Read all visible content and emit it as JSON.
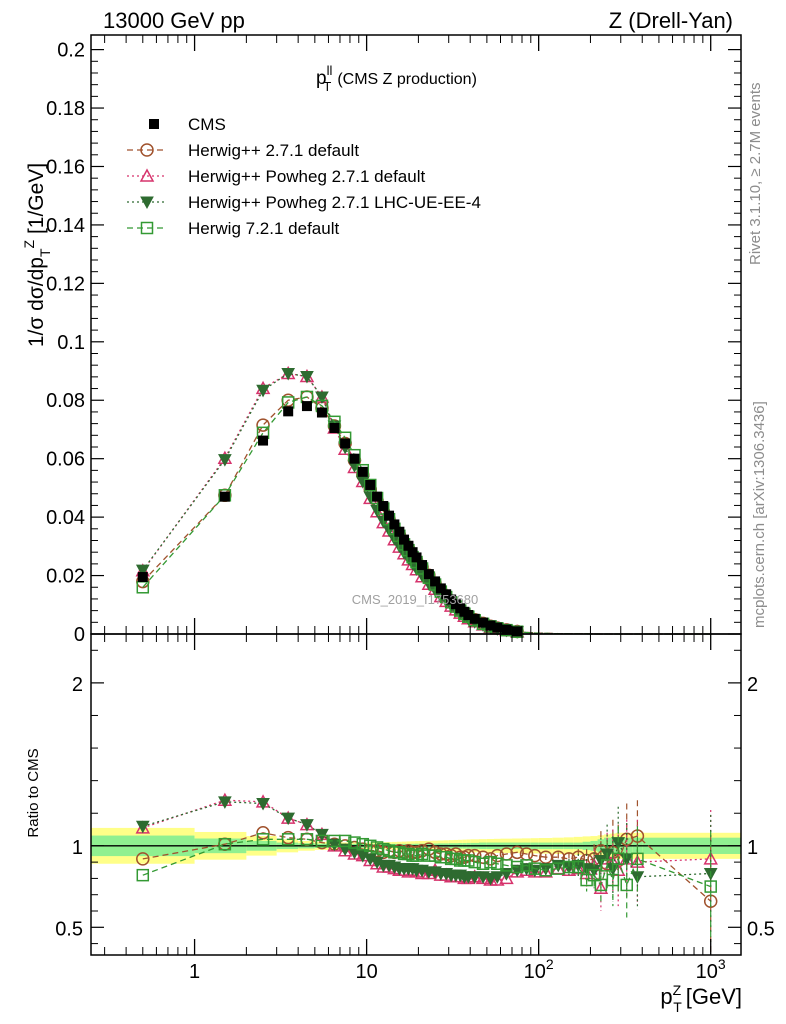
{
  "header": {
    "left": "13000 GeV pp",
    "right": "Z (Drell-Yan)"
  },
  "side": {
    "rivet": "Rivet 3.1.10, ≥ 2.7M events",
    "mcplots": "mcplots.cern.ch [arXiv:1306.3436]"
  },
  "watermark": "CMS_2019_I1753680",
  "chart_data": [
    {
      "type": "scatter",
      "panel": "main",
      "title_main": "p",
      "title_sup": "ll",
      "title_sub": "T",
      "title_rest": "(CMS Z production)",
      "ylabel": "1/σ dσ/dp_T^Z [1/GeV]",
      "xscale": "log",
      "xlim": [
        0.25,
        1500
      ],
      "ylim": [
        0,
        0.205
      ],
      "yticks": [
        0,
        0.02,
        0.04,
        0.06,
        0.08,
        0.1,
        0.12,
        0.14,
        0.16,
        0.18,
        0.2
      ],
      "ytick_labels": [
        "0",
        "0.02",
        "0.04",
        "0.06",
        "0.08",
        "0.1",
        "0.12",
        "0.14",
        "0.16",
        "0.18",
        "0.2"
      ],
      "legend_position": "top-left",
      "x": [
        0.5,
        1.5,
        2.5,
        3.5,
        4.5,
        5.5,
        6.5,
        7.5,
        8.5,
        9.5,
        10.5,
        11.5,
        12.5,
        13.5,
        14.5,
        15.5,
        16.5,
        17.5,
        18.5,
        19.5,
        21,
        23,
        25,
        27,
        29,
        31,
        33,
        35,
        37,
        39,
        42.5,
        47.5,
        52.5,
        57.5,
        65,
        75,
        85,
        95,
        110,
        130,
        150,
        170,
        190,
        210,
        230,
        250,
        270,
        290,
        325,
        375,
        1000
      ],
      "series": [
        {
          "name": "CMS",
          "style": "data",
          "color": "#000000",
          "values": [
            0.0195,
            0.047,
            0.0662,
            0.0762,
            0.078,
            0.0758,
            0.0705,
            0.0652,
            0.06,
            0.0555,
            0.051,
            0.047,
            0.0438,
            0.0405,
            0.0375,
            0.035,
            0.0323,
            0.0302,
            0.028,
            0.0262,
            0.0236,
            0.0205,
            0.018,
            0.0156,
            0.0136,
            0.0118,
            0.0102,
            0.0088,
            0.0076,
            0.0065,
            0.0052,
            0.0039,
            0.0029,
            0.0022,
            0.0015,
            0.0009,
            0.0006,
            0.0004,
            0.00025,
            0.00013,
            7e-05,
            4e-05,
            3e-05,
            2e-05,
            1.5e-05,
            1e-05,
            1e-05,
            1e-05,
            5e-06,
            3e-06,
            3e-07
          ]
        },
        {
          "name": "Herwig++ 2.7.1 default",
          "style": "open-circle",
          "line": "dashed",
          "color": "#a0522d",
          "ratio": [
            0.92,
            1.01,
            1.08,
            1.05,
            1.04,
            1.02,
            1.01,
            1.0,
            0.99,
            0.98,
            0.97,
            0.97,
            0.96,
            0.97,
            0.96,
            0.97,
            0.96,
            0.97,
            0.96,
            0.96,
            0.97,
            0.98,
            0.96,
            0.95,
            0.95,
            0.94,
            0.95,
            0.93,
            0.93,
            0.94,
            0.94,
            0.93,
            0.92,
            0.94,
            0.95,
            0.96,
            0.95,
            0.94,
            0.93,
            0.93,
            0.92,
            0.93,
            0.91,
            0.92,
            0.97,
            0.89,
            0.96,
            0.91,
            1.04,
            1.06,
            0.66
          ],
          "ratio_err": [
            0,
            0,
            0,
            0,
            0,
            0,
            0,
            0,
            0,
            0,
            0,
            0,
            0,
            0,
            0,
            0,
            0,
            0,
            0,
            0,
            0,
            0,
            0,
            0,
            0,
            0,
            0,
            0,
            0,
            0,
            0,
            0,
            0,
            0,
            0,
            0,
            0,
            0,
            0.02,
            0.03,
            0.04,
            0.05,
            0.07,
            0.09,
            0.12,
            0.14,
            0.2,
            0.22,
            0.22,
            0.22,
            0.4
          ]
        },
        {
          "name": "Herwig++ Powheg 2.7.1 default",
          "style": "open-triangle",
          "line": "dotted",
          "color": "#d6336c",
          "ratio": [
            1.11,
            1.28,
            1.27,
            1.17,
            1.13,
            1.07,
            1.0,
            0.97,
            0.95,
            0.94,
            0.91,
            0.89,
            0.87,
            0.87,
            0.86,
            0.85,
            0.85,
            0.84,
            0.85,
            0.84,
            0.83,
            0.83,
            0.85,
            0.82,
            0.82,
            0.81,
            0.81,
            0.81,
            0.8,
            0.8,
            0.81,
            0.8,
            0.79,
            0.79,
            0.8,
            0.84,
            0.85,
            0.84,
            0.84,
            0.86,
            0.85,
            0.86,
            0.83,
            0.88,
            0.74,
            0.92,
            0.9,
            0.85,
            0.92,
            0.9,
            0.92
          ],
          "ratio_err": [
            0,
            0,
            0,
            0,
            0,
            0,
            0,
            0,
            0,
            0,
            0,
            0,
            0,
            0,
            0,
            0,
            0,
            0,
            0,
            0,
            0,
            0,
            0,
            0,
            0,
            0,
            0,
            0,
            0,
            0,
            0,
            0,
            0,
            0,
            0,
            0,
            0,
            0,
            0.02,
            0.03,
            0.04,
            0.06,
            0.08,
            0.1,
            0.14,
            0.16,
            0.2,
            0.22,
            0.24,
            0.26,
            0.3
          ]
        },
        {
          "name": "Herwig++ Powheg 2.7.1 LHC-UE-EE-4",
          "style": "filled-triangle-down",
          "line": "dotted",
          "color": "#2e6b30",
          "ratio": [
            1.12,
            1.27,
            1.26,
            1.17,
            1.13,
            1.07,
            1.01,
            0.98,
            0.96,
            0.94,
            0.92,
            0.9,
            0.88,
            0.88,
            0.87,
            0.86,
            0.86,
            0.86,
            0.86,
            0.85,
            0.85,
            0.84,
            0.84,
            0.83,
            0.83,
            0.82,
            0.82,
            0.82,
            0.81,
            0.81,
            0.81,
            0.81,
            0.8,
            0.81,
            0.83,
            0.85,
            0.86,
            0.85,
            0.86,
            0.88,
            0.87,
            0.88,
            0.86,
            0.85,
            0.91,
            0.95,
            0.86,
            1.02,
            0.92,
            0.81,
            0.83
          ],
          "ratio_err": [
            0,
            0,
            0,
            0,
            0,
            0,
            0,
            0,
            0,
            0,
            0,
            0,
            0,
            0,
            0,
            0,
            0,
            0,
            0,
            0,
            0,
            0,
            0,
            0,
            0,
            0,
            0,
            0,
            0,
            0,
            0,
            0,
            0,
            0,
            0,
            0,
            0,
            0,
            0.02,
            0.03,
            0.05,
            0.07,
            0.09,
            0.11,
            0.14,
            0.18,
            0.2,
            0.22,
            0.22,
            0.2,
            0.36
          ]
        },
        {
          "name": "Herwig 7.2.1 default",
          "style": "open-square",
          "line": "dashed",
          "color": "#339933",
          "ratio": [
            0.82,
            1.01,
            1.04,
            1.04,
            1.04,
            1.03,
            1.03,
            1.03,
            1.02,
            1.01,
            1.0,
            0.99,
            0.98,
            0.97,
            0.96,
            0.96,
            0.95,
            0.95,
            0.94,
            0.94,
            0.95,
            0.94,
            0.94,
            0.93,
            0.93,
            0.92,
            0.92,
            0.91,
            0.91,
            0.91,
            0.9,
            0.89,
            0.9,
            0.89,
            0.88,
            0.87,
            0.88,
            0.86,
            0.85,
            0.86,
            0.87,
            0.87,
            0.79,
            0.82,
            0.76,
            0.88,
            0.79,
            0.92,
            0.76,
            0.92,
            0.75
          ],
          "ratio_err": [
            0,
            0,
            0,
            0,
            0,
            0,
            0,
            0,
            0,
            0,
            0,
            0,
            0,
            0,
            0,
            0,
            0,
            0,
            0,
            0,
            0,
            0,
            0,
            0,
            0,
            0,
            0,
            0,
            0,
            0,
            0,
            0,
            0,
            0,
            0,
            0,
            0,
            0,
            0.02,
            0.03,
            0.04,
            0.05,
            0.07,
            0.09,
            0.12,
            0.14,
            0.16,
            0.2,
            0.2,
            0.2,
            0.34
          ]
        }
      ]
    },
    {
      "type": "scatter",
      "panel": "ratio",
      "ylabel": "Ratio to CMS",
      "xlabel_main": "p",
      "xlabel_sup": "Z",
      "xlabel_sub": "T",
      "xlabel_rest": "[GeV]",
      "xscale": "log",
      "xlim": [
        0.25,
        1500
      ],
      "ylim": [
        0.33,
        2.3
      ],
      "yticks": [
        0.5,
        1,
        2
      ],
      "ytick_labels": [
        "0.5",
        "1",
        "2"
      ],
      "xticks": [
        1,
        10,
        100,
        1000
      ],
      "xtick_labels": [
        {
          "base": "1",
          "exp": ""
        },
        {
          "base": "10",
          "exp": ""
        },
        {
          "base": "10",
          "exp": "2"
        },
        {
          "base": "10",
          "exp": "3"
        }
      ],
      "band_edges": [
        0,
        1,
        2,
        3,
        4,
        5,
        6,
        7,
        8,
        9,
        10,
        11,
        12,
        13,
        14,
        15,
        16,
        17,
        18,
        19,
        20,
        22,
        24,
        26,
        28,
        30,
        32,
        34,
        36,
        38,
        40,
        45,
        50,
        55,
        60,
        70,
        80,
        90,
        100,
        120,
        140,
        160,
        180,
        200,
        220,
        240,
        260,
        280,
        300,
        350,
        400,
        1500
      ],
      "band_inner": [
        0.063,
        0.045,
        0.03,
        0.02,
        0.016,
        0.013,
        0.012,
        0.012,
        0.012,
        0.012,
        0.012,
        0.012,
        0.012,
        0.012,
        0.012,
        0.012,
        0.012,
        0.012,
        0.012,
        0.013,
        0.013,
        0.014,
        0.014,
        0.015,
        0.015,
        0.016,
        0.016,
        0.017,
        0.017,
        0.018,
        0.018,
        0.02,
        0.02,
        0.02,
        0.02,
        0.02,
        0.02,
        0.02,
        0.02,
        0.02,
        0.02,
        0.02,
        0.025,
        0.03,
        0.04,
        0.05,
        0.05,
        0.05,
        0.05,
        0.05,
        0.05
      ],
      "band_outer": [
        0.11,
        0.085,
        0.06,
        0.04,
        0.03,
        0.025,
        0.022,
        0.021,
        0.02,
        0.02,
        0.02,
        0.021,
        0.022,
        0.023,
        0.024,
        0.025,
        0.026,
        0.027,
        0.028,
        0.029,
        0.03,
        0.031,
        0.032,
        0.033,
        0.034,
        0.035,
        0.036,
        0.037,
        0.038,
        0.039,
        0.04,
        0.041,
        0.042,
        0.043,
        0.044,
        0.045,
        0.046,
        0.047,
        0.048,
        0.05,
        0.052,
        0.055,
        0.058,
        0.06,
        0.065,
        0.07,
        0.075,
        0.08,
        0.08,
        0.08,
        0.08
      ]
    }
  ]
}
